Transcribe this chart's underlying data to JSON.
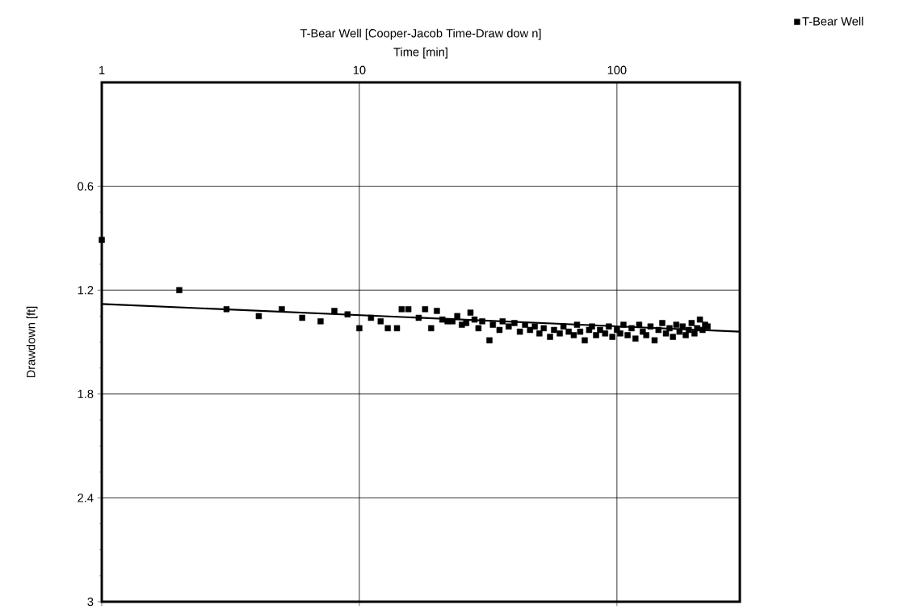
{
  "chart_data": {
    "type": "scatter",
    "title": "T-Bear Well [Cooper-Jacob Time-Draw dow n]",
    "xlabel": "Time [min]",
    "ylabel": "Drawdown [ft]",
    "log": "x",
    "xlim": [
      1,
      300
    ],
    "xticks": [
      1,
      10,
      100
    ],
    "ylim": [
      3,
      0
    ],
    "yticks": [
      0.6,
      1.2,
      1.8,
      2.4,
      3
    ],
    "grid": true,
    "legend": "top right",
    "series": [
      {
        "name": "T-Bear Well",
        "marker": "square",
        "color": "#000000",
        "x": [
          1,
          2,
          3.05,
          4.07,
          5,
          6,
          7.07,
          8,
          9,
          10,
          11.1,
          12.1,
          12.9,
          14,
          14.6,
          15.5,
          17,
          18,
          19,
          20,
          21,
          22,
          23,
          24,
          25,
          26,
          27,
          28,
          29,
          30,
          32,
          33,
          35,
          36,
          38,
          40,
          42,
          44,
          46,
          48,
          50,
          52,
          55,
          57,
          60,
          62,
          65,
          68,
          70,
          72,
          75,
          78,
          80,
          83,
          86,
          90,
          93,
          96,
          100,
          103,
          106,
          110,
          114,
          118,
          122,
          126,
          130,
          135,
          140,
          145,
          150,
          155,
          160,
          165,
          170,
          175,
          180,
          185,
          190,
          195,
          200,
          205,
          210,
          215,
          220,
          225
        ],
        "values": [
          0.91,
          1.2,
          1.31,
          1.35,
          1.31,
          1.36,
          1.38,
          1.32,
          1.34,
          1.42,
          1.36,
          1.38,
          1.42,
          1.42,
          1.31,
          1.31,
          1.36,
          1.31,
          1.42,
          1.32,
          1.37,
          1.38,
          1.38,
          1.35,
          1.4,
          1.39,
          1.33,
          1.37,
          1.42,
          1.38,
          1.49,
          1.4,
          1.43,
          1.38,
          1.41,
          1.39,
          1.44,
          1.4,
          1.43,
          1.41,
          1.45,
          1.42,
          1.47,
          1.43,
          1.45,
          1.41,
          1.44,
          1.46,
          1.4,
          1.44,
          1.49,
          1.43,
          1.41,
          1.46,
          1.43,
          1.45,
          1.41,
          1.47,
          1.43,
          1.45,
          1.4,
          1.46,
          1.42,
          1.48,
          1.4,
          1.44,
          1.46,
          1.41,
          1.49,
          1.43,
          1.39,
          1.45,
          1.42,
          1.47,
          1.4,
          1.44,
          1.41,
          1.46,
          1.43,
          1.39,
          1.45,
          1.42,
          1.37,
          1.43,
          1.4,
          1.41
        ]
      },
      {
        "type": "line",
        "color": "#000000",
        "line_style": "solid",
        "x": [
          1,
          300
        ],
        "values": [
          1.28,
          1.44
        ]
      }
    ]
  }
}
